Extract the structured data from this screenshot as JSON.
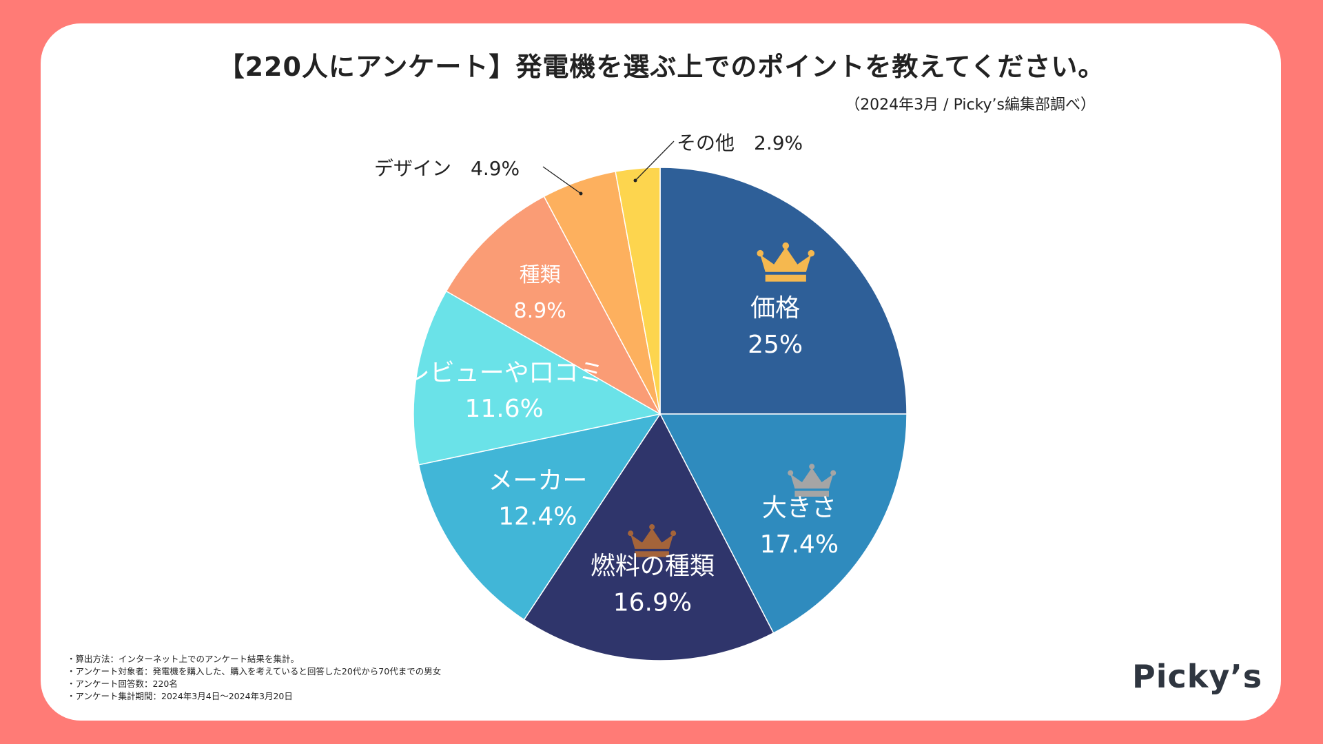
{
  "header": {
    "title": "【220人にアンケート】発電機を選ぶ上でのポイントを教えてください。",
    "source": "（2024年3月 / Picky’s編集部調べ）"
  },
  "chart_data": {
    "type": "pie",
    "start": "12 o'clock, clockwise",
    "categories": [
      "価格",
      "大きさ",
      "燃料の種類",
      "メーカー",
      "レビューや口コミ",
      "種類",
      "デザイン",
      "その他"
    ],
    "values": [
      25,
      17.4,
      16.9,
      12.4,
      11.6,
      8.9,
      4.9,
      2.9
    ],
    "value_labels": [
      "25%",
      "17.4%",
      "16.9%",
      "12.4%",
      "11.6%",
      "8.9%",
      "4.9%",
      "2.9%"
    ],
    "colors": [
      "#2E5F98",
      "#2F8BBE",
      "#2F356B",
      "#41B6D7",
      "#6AE2E8",
      "#FA9C75",
      "#FDB05E",
      "#FDD54E"
    ],
    "label_colors": [
      "#FFFFFF",
      "#FFFFFF",
      "#FFFFFF",
      "#FFFFFF",
      "#FFFFFF",
      "#FFFFFF",
      "#222222",
      "#222222"
    ],
    "outside_labels": {
      "デザイン": "デザイン　4.9%",
      "その他": "その他　2.9%"
    },
    "rank_icons": [
      {
        "rank": 1,
        "category": "価格",
        "icon": "gold-crown-icon",
        "color": "#F5B84F"
      },
      {
        "rank": 2,
        "category": "大きさ",
        "icon": "silver-crown-icon",
        "color": "#A5A5A5"
      },
      {
        "rank": 3,
        "category": "燃料の種類",
        "icon": "bronze-crown-icon",
        "color": "#A4643A"
      }
    ]
  },
  "notes": [
    "・算出方法：インターネット上でのアンケート結果を集計。",
    "・アンケート対象者：発電機を購入した、購入を考えていると回答した20代から70代までの男女",
    "・アンケート回答数：220名",
    "・アンケート集計期間：2024年3月4日〜2024年3月20日"
  ],
  "brand": {
    "logo_text": "Picky’s"
  }
}
